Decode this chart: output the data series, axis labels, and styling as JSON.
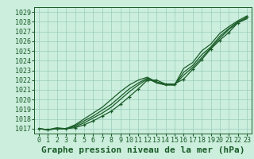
{
  "title": "Graphe pression niveau de la mer (hPa)",
  "xlabel_hours": [
    0,
    1,
    2,
    3,
    4,
    5,
    6,
    7,
    8,
    9,
    10,
    11,
    12,
    13,
    14,
    15,
    16,
    17,
    18,
    19,
    20,
    21,
    22,
    23
  ],
  "ylim": [
    1016.5,
    1029.5
  ],
  "yticks": [
    1017,
    1018,
    1019,
    1020,
    1021,
    1022,
    1023,
    1024,
    1025,
    1026,
    1027,
    1028,
    1029
  ],
  "bg_color": "#cceedd",
  "title_bg_color": "#2d7a3a",
  "grid_color": "#99ccbb",
  "line_color": "#1a5c28",
  "lines": [
    [
      1017.0,
      1016.9,
      1017.0,
      1017.0,
      1017.1,
      1017.4,
      1017.8,
      1018.3,
      1018.8,
      1019.5,
      1020.3,
      1021.1,
      1022.0,
      1022.0,
      1021.6,
      1021.6,
      1022.1,
      1023.1,
      1024.1,
      1025.2,
      1026.1,
      1026.9,
      1027.9,
      1028.5
    ],
    [
      1017.0,
      1016.9,
      1017.0,
      1017.0,
      1017.2,
      1017.6,
      1018.1,
      1018.6,
      1019.2,
      1020.0,
      1020.8,
      1021.5,
      1022.1,
      1021.8,
      1021.5,
      1021.5,
      1022.5,
      1023.3,
      1024.3,
      1025.3,
      1026.3,
      1027.2,
      1027.9,
      1028.3
    ],
    [
      1017.0,
      1016.9,
      1017.0,
      1017.0,
      1017.3,
      1017.8,
      1018.3,
      1018.9,
      1019.5,
      1020.3,
      1021.1,
      1021.7,
      1022.2,
      1021.7,
      1021.5,
      1021.5,
      1022.8,
      1023.5,
      1024.6,
      1025.4,
      1026.5,
      1027.3,
      1028.0,
      1028.4
    ],
    [
      1017.0,
      1016.9,
      1017.1,
      1017.0,
      1017.4,
      1018.0,
      1018.6,
      1019.2,
      1020.0,
      1020.8,
      1021.5,
      1022.0,
      1022.3,
      1021.8,
      1021.6,
      1021.5,
      1023.2,
      1023.8,
      1025.0,
      1025.7,
      1026.8,
      1027.5,
      1028.1,
      1028.6
    ]
  ],
  "title_fontsize": 8,
  "tick_fontsize": 6
}
